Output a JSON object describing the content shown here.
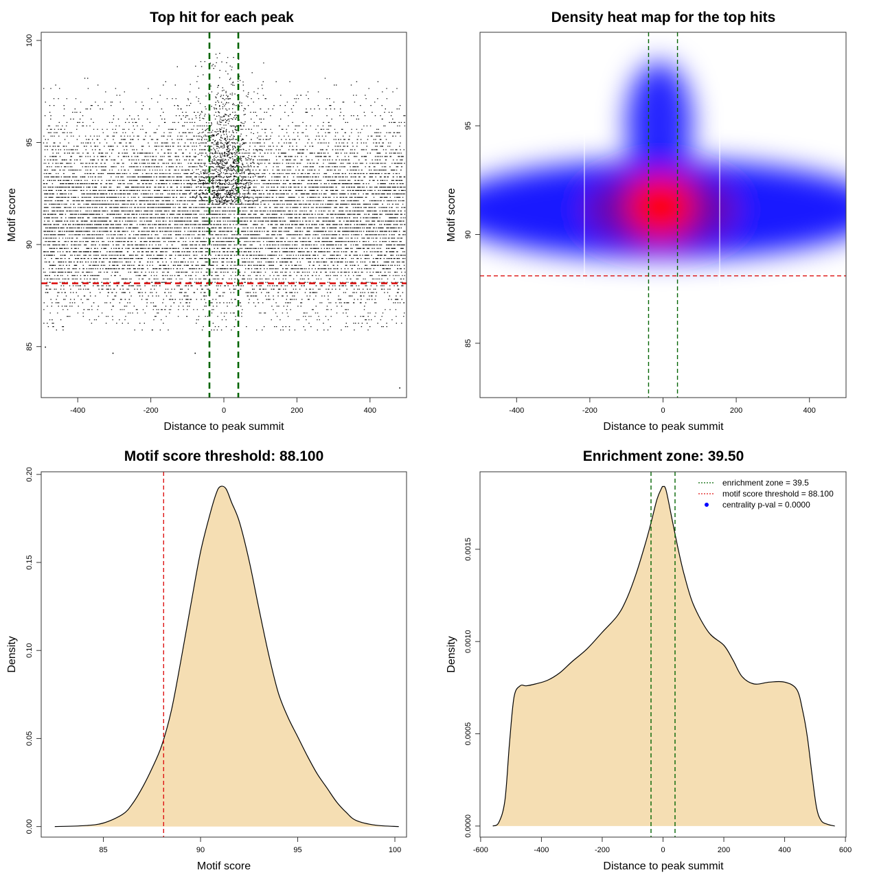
{
  "chart_data": [
    {
      "type": "scatter",
      "title": "Top hit for each peak",
      "xlabel": "Distance to peak summit",
      "ylabel": "Motif score",
      "xlim": [
        -500,
        500
      ],
      "ylim": [
        82.5,
        100.4
      ],
      "xticks": [
        -400,
        -200,
        0,
        200,
        400
      ],
      "yticks": [
        85,
        90,
        95,
        100
      ],
      "point_density": {
        "x_range": [
          -495,
          495
        ],
        "y_mean": 91.4,
        "y_sd": 2.2,
        "center_peak_score": 99.6,
        "outliers": [
          [
            -490,
            85.0
          ],
          [
            -305,
            84.7
          ],
          [
            480,
            83.0
          ],
          [
            -80,
            84.7
          ]
        ]
      },
      "hlines": [
        {
          "y": 88.1,
          "color": "#dd1111",
          "style": "dashed"
        }
      ],
      "vlines": [
        {
          "x": -39.5,
          "color": "#006400",
          "style": "dashed"
        },
        {
          "x": 39.5,
          "color": "#006400",
          "style": "dashed"
        }
      ]
    },
    {
      "type": "heatmap",
      "title": "Density heat map for the top hits",
      "xlabel": "Distance to peak summit",
      "ylabel": "Motif score",
      "xlim": [
        -500,
        500
      ],
      "ylim": [
        82.5,
        99.3
      ],
      "xticks": [
        -400,
        -200,
        0,
        200,
        400
      ],
      "yticks": [
        85,
        90,
        95
      ],
      "colors": [
        "#ffffff",
        "#0000ff",
        "#ff0000"
      ],
      "density_center": [
        0,
        91.8
      ],
      "hlines": [
        {
          "y": 88.1,
          "color": "#dd1111",
          "style": "dashed"
        }
      ],
      "vlines": [
        {
          "x": -39.5,
          "color": "#006400",
          "style": "dashed"
        },
        {
          "x": 39.5,
          "color": "#006400",
          "style": "dashed"
        }
      ]
    },
    {
      "type": "area",
      "title": "Motif score threshold: 88.100",
      "xlabel": "Motif score",
      "ylabel": "Density",
      "xlim": [
        81.8,
        100.6
      ],
      "ylim": [
        -0.006,
        0.2015
      ],
      "xticks": [
        85,
        90,
        95,
        100
      ],
      "yticks": [
        0.0,
        0.05,
        0.1,
        0.15,
        0.2
      ],
      "ytick_labels": [
        "0.00",
        "0.05",
        "0.10",
        "0.15",
        "0.20"
      ],
      "fill": "#f5deb3",
      "x": [
        82.5,
        84,
        85,
        86,
        86.5,
        87,
        87.5,
        88,
        88.5,
        89,
        89.5,
        90,
        90.5,
        90.8,
        91,
        91.3,
        91.6,
        92,
        92.5,
        93,
        93.5,
        94,
        94.5,
        95,
        95.5,
        96,
        96.5,
        97,
        97.5,
        98,
        99,
        100.2
      ],
      "y": [
        0.0,
        0.0005,
        0.002,
        0.007,
        0.013,
        0.022,
        0.033,
        0.046,
        0.066,
        0.095,
        0.126,
        0.156,
        0.178,
        0.189,
        0.193,
        0.192,
        0.184,
        0.173,
        0.151,
        0.124,
        0.098,
        0.076,
        0.062,
        0.051,
        0.04,
        0.03,
        0.022,
        0.014,
        0.008,
        0.0035,
        0.0008,
        0.0
      ],
      "vlines": [
        {
          "x": 88.1,
          "color": "#dd1111",
          "style": "dashed"
        }
      ]
    },
    {
      "type": "area",
      "title": "Enrichment zone: 39.50",
      "xlabel": "Distance to peak summit",
      "ylabel": "Density",
      "xlim": [
        -602,
        602
      ],
      "ylim": [
        -6e-05,
        0.00192
      ],
      "xticks": [
        -600,
        -400,
        -200,
        0,
        200,
        400,
        600
      ],
      "yticks": [
        0.0,
        0.0005,
        0.001,
        0.0015
      ],
      "ytick_labels": [
        "0.0000",
        "0.0005",
        "0.0010",
        "0.0015"
      ],
      "fill": "#f5deb3",
      "x": [
        -560,
        -540,
        -520,
        -505,
        -490,
        -470,
        -450,
        -420,
        -380,
        -340,
        -300,
        -250,
        -200,
        -150,
        -120,
        -90,
        -60,
        -40,
        -20,
        -5,
        0,
        10,
        30,
        50,
        70,
        100,
        150,
        200,
        230,
        260,
        300,
        350,
        400,
        440,
        460,
        475,
        490,
        505,
        520,
        540,
        565
      ],
      "y": [
        0.0,
        2e-05,
        0.00014,
        0.00045,
        0.0007,
        0.00076,
        0.00076,
        0.00077,
        0.00079,
        0.00083,
        0.00089,
        0.00096,
        0.00105,
        0.00114,
        0.00123,
        0.00136,
        0.00152,
        0.00164,
        0.00177,
        0.00183,
        0.00184,
        0.00182,
        0.00166,
        0.0015,
        0.00136,
        0.0012,
        0.00105,
        0.00098,
        0.0009,
        0.00081,
        0.00077,
        0.00078,
        0.00078,
        0.00074,
        0.00062,
        0.00048,
        0.00028,
        0.0001,
        3e-05,
        1e-05,
        0.0
      ],
      "vlines": [
        {
          "x": -39.5,
          "color": "#006400",
          "style": "dashed"
        },
        {
          "x": 39.5,
          "color": "#006400",
          "style": "dashed"
        }
      ],
      "legend": {
        "placement": "top-right",
        "entries": [
          {
            "label": "enrichment zone = 39.5",
            "color": "#006400",
            "kind": "line"
          },
          {
            "label": "motif score threshold = 88.100",
            "color": "#dd1111",
            "kind": "line"
          },
          {
            "label": "centrality p-val = 0.0000",
            "color": "#0000ff",
            "kind": "point"
          }
        ]
      }
    }
  ]
}
